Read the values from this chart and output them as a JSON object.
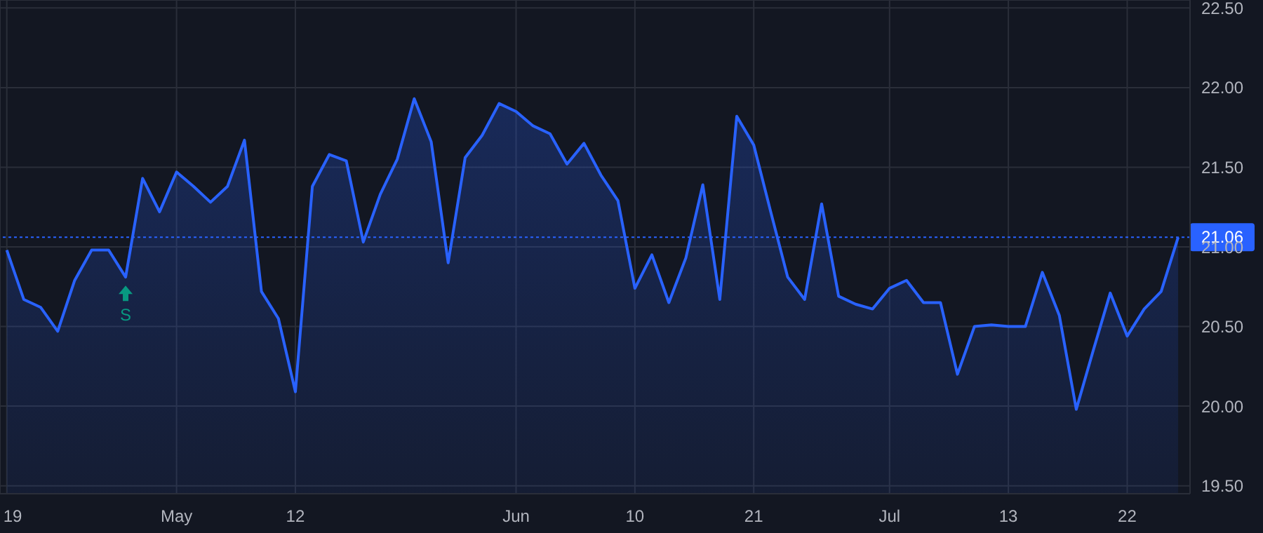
{
  "chart_data": {
    "type": "area",
    "categories": [
      "19",
      null,
      null,
      null,
      null,
      null,
      null,
      null,
      null,
      null,
      "May",
      null,
      null,
      null,
      null,
      null,
      null,
      "12",
      null,
      null,
      null,
      null,
      null,
      null,
      null,
      null,
      null,
      null,
      null,
      null,
      "Jun",
      null,
      null,
      null,
      null,
      null,
      null,
      "10",
      null,
      null,
      null,
      null,
      null,
      null,
      "21",
      null,
      null,
      null,
      null,
      null,
      null,
      null,
      "Jul",
      null,
      null,
      null,
      null,
      null,
      null,
      "13",
      null,
      null,
      null,
      null,
      null,
      null,
      "22",
      null,
      null,
      null
    ],
    "series": [
      {
        "color": "#2962ff",
        "values": [
          20.98,
          20.67,
          20.62,
          20.47,
          20.79,
          20.98,
          20.98,
          20.81,
          21.43,
          21.22,
          21.47,
          21.38,
          21.28,
          21.38,
          21.67,
          20.72,
          20.55,
          20.09,
          21.38,
          21.58,
          21.54,
          21.03,
          21.33,
          21.55,
          21.93,
          21.66,
          20.9,
          21.56,
          21.7,
          21.9,
          21.85,
          21.76,
          21.71,
          21.52,
          21.65,
          21.45,
          21.29,
          20.74,
          20.95,
          20.65,
          20.93,
          21.39,
          20.67,
          21.82,
          21.64,
          21.22,
          20.81,
          20.67,
          21.27,
          20.69,
          20.64,
          20.61,
          20.74,
          20.79,
          20.65,
          20.65,
          20.2,
          20.5,
          20.51,
          20.5,
          20.5,
          20.84,
          20.57,
          19.98,
          20.35,
          20.71,
          20.44,
          20.61,
          20.72,
          21.06
        ]
      }
    ],
    "ylim": [
      19.45,
      22.55
    ],
    "yticks": [
      {
        "value": 19.5,
        "label": "19.50"
      },
      {
        "value": 20,
        "label": "20.00"
      },
      {
        "value": 20.5,
        "label": "20.50"
      },
      {
        "value": 21,
        "label": "21.00"
      },
      {
        "value": 21.5,
        "label": "21.50"
      },
      {
        "value": 22,
        "label": "22.00"
      },
      {
        "value": 22.5,
        "label": "22.50"
      }
    ],
    "grid": true,
    "legend": false,
    "ref_lines": [
      {
        "axis": "y",
        "value": 21.06,
        "label": "21.06",
        "color": "#2962ff",
        "line_style": "dotted"
      }
    ],
    "annotations": [
      {
        "text": "S",
        "y": 20.81
      }
    ]
  }
}
